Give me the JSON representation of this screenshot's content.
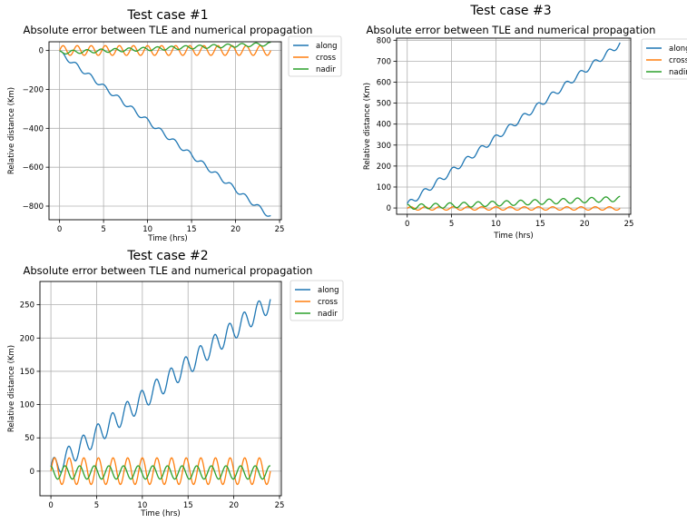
{
  "chart_data": [
    {
      "type": "line",
      "title": "Test case #1",
      "subtitle": "Absolute error between TLE and numerical propagation",
      "xlabel": "Time (hrs)",
      "ylabel": "Relative distance (Km)",
      "xlim": [
        -1.2,
        25.2
      ],
      "ylim": [
        -870,
        45
      ],
      "xticks": [
        0,
        5,
        10,
        15,
        20,
        25
      ],
      "xtick_labels": [
        "0",
        "5",
        "10",
        "15",
        "20",
        "25"
      ],
      "yticks": [
        0,
        -200,
        -400,
        -600,
        -800
      ],
      "ytick_labels": [
        "0",
        "−200",
        "−400",
        "−600",
        "−800"
      ],
      "grid": true,
      "legend_position": "outside-top-right",
      "series": [
        {
          "name": "along",
          "color": "#1f77b4",
          "model": {
            "slope": -35.2,
            "offset": -10,
            "amp": 12,
            "period": 1.6,
            "phase": 0.5
          }
        },
        {
          "name": "cross",
          "color": "#ff7f0e",
          "model": {
            "slope": 0,
            "offset": 0,
            "amp": 25,
            "period": 1.6,
            "phase": 0.0
          }
        },
        {
          "name": "nadir",
          "color": "#2ca02c",
          "model": {
            "slope": 1.8,
            "offset": -10,
            "amp": 9,
            "period": 1.6,
            "phase": 1.9
          }
        }
      ]
    },
    {
      "type": "line",
      "title": "Test case #3",
      "subtitle": "Absolute error between TLE and numerical propagation",
      "xlabel": "Time (hrs)",
      "ylabel": "Relative distance (Km)",
      "xlim": [
        -1.2,
        25.2
      ],
      "ylim": [
        -30,
        810
      ],
      "xticks": [
        0,
        5,
        10,
        15,
        20,
        25
      ],
      "xtick_labels": [
        "0",
        "5",
        "10",
        "15",
        "20",
        "25"
      ],
      "yticks": [
        0,
        100,
        200,
        300,
        400,
        500,
        600,
        700,
        800
      ],
      "ytick_labels": [
        "0",
        "100",
        "200",
        "300",
        "400",
        "500",
        "600",
        "700",
        "800"
      ],
      "grid": true,
      "legend_position": "outside-top-right",
      "series": [
        {
          "name": "along",
          "color": "#1f77b4",
          "model": {
            "slope": 32,
            "offset": 15,
            "amp": 14,
            "period": 1.6,
            "phase": 0.4
          }
        },
        {
          "name": "cross",
          "color": "#ff7f0e",
          "model": {
            "slope": 0,
            "offset": -2,
            "amp": 8,
            "period": 1.6,
            "phase": 0.0
          }
        },
        {
          "name": "nadir",
          "color": "#2ca02c",
          "model": {
            "slope": 1.6,
            "offset": 5,
            "amp": 12,
            "period": 1.6,
            "phase": 1.6
          }
        }
      ]
    },
    {
      "type": "line",
      "title": "Test case #2",
      "subtitle": "Absolute error between TLE and numerical propagation",
      "xlabel": "Time (hrs)",
      "ylabel": "Relative distance (Km)",
      "xlim": [
        -1.2,
        25.2
      ],
      "ylim": [
        -37,
        285
      ],
      "xticks": [
        0,
        5,
        10,
        15,
        20,
        25
      ],
      "xtick_labels": [
        "0",
        "5",
        "10",
        "15",
        "20",
        "25"
      ],
      "yticks": [
        0,
        50,
        100,
        150,
        200,
        250
      ],
      "ytick_labels": [
        "0",
        "50",
        "100",
        "150",
        "200",
        "250"
      ],
      "grid": true,
      "legend_position": "outside-top-right",
      "series": [
        {
          "name": "along",
          "color": "#1f77b4",
          "model": {
            "slope": 10.5,
            "offset": 2,
            "amp": 15,
            "period": 1.6,
            "phase": 0.3
          }
        },
        {
          "name": "cross",
          "color": "#ff7f0e",
          "model": {
            "slope": 0,
            "offset": 0,
            "amp": 20,
            "period": 1.6,
            "phase": 0.0
          }
        },
        {
          "name": "nadir",
          "color": "#2ca02c",
          "model": {
            "slope": 0,
            "offset": -2,
            "amp": 10,
            "period": 1.6,
            "phase": 1.8
          }
        }
      ]
    }
  ]
}
